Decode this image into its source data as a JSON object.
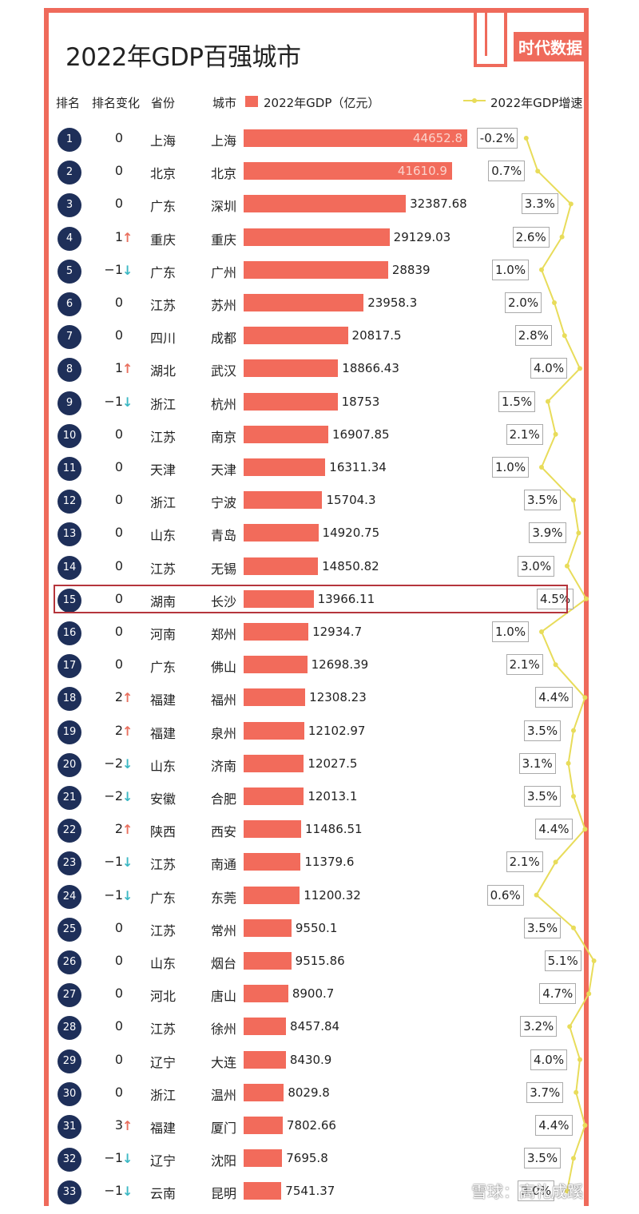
{
  "title": "2022年GDP百强城市",
  "brand": "时代数据",
  "headers": {
    "rank": "排名",
    "change": "排名变化",
    "province": "省份",
    "city": "城市",
    "gdp_legend": "2022年GDP（亿元）",
    "growth_legend": "2022年GDP增速"
  },
  "watermark": "雪球：高礼成蹊",
  "colors": {
    "bar": "#f26b5b",
    "rank_circle": "#1e2f59",
    "up": "#e9705f",
    "down": "#3cb8c4",
    "growth_line": "#e8dc5a",
    "highlight": "#b5353c"
  },
  "highlight_rank": "15",
  "chart_data": {
    "type": "bar",
    "title": "2022年GDP百强城市",
    "xlabel": "",
    "ylabel": "2022年GDP（亿元）",
    "rows": [
      {
        "rank": "1",
        "change": "0",
        "dir": "",
        "province": "上海",
        "city": "上海",
        "gdp": 44652.8,
        "gdp_label": "44652.8",
        "growth": "-0.2%",
        "growth_value": -0.2
      },
      {
        "rank": "2",
        "change": "0",
        "dir": "",
        "province": "北京",
        "city": "北京",
        "gdp": 41610.9,
        "gdp_label": "41610.9",
        "growth": "0.7%",
        "growth_value": 0.7
      },
      {
        "rank": "3",
        "change": "0",
        "dir": "",
        "province": "广东",
        "city": "深圳",
        "gdp": 32387.68,
        "gdp_label": "32387.68",
        "growth": "3.3%",
        "growth_value": 3.3
      },
      {
        "rank": "4",
        "change": "1",
        "dir": "up",
        "province": "重庆",
        "city": "重庆",
        "gdp": 29129.03,
        "gdp_label": "29129.03",
        "growth": "2.6%",
        "growth_value": 2.6
      },
      {
        "rank": "5",
        "change": "−1",
        "dir": "down",
        "province": "广东",
        "city": "广州",
        "gdp": 28839,
        "gdp_label": "28839",
        "growth": "1.0%",
        "growth_value": 1.0
      },
      {
        "rank": "6",
        "change": "0",
        "dir": "",
        "province": "江苏",
        "city": "苏州",
        "gdp": 23958.3,
        "gdp_label": "23958.3",
        "growth": "2.0%",
        "growth_value": 2.0
      },
      {
        "rank": "7",
        "change": "0",
        "dir": "",
        "province": "四川",
        "city": "成都",
        "gdp": 20817.5,
        "gdp_label": "20817.5",
        "growth": "2.8%",
        "growth_value": 2.8
      },
      {
        "rank": "8",
        "change": "1",
        "dir": "up",
        "province": "湖北",
        "city": "武汉",
        "gdp": 18866.43,
        "gdp_label": "18866.43",
        "growth": "4.0%",
        "growth_value": 4.0
      },
      {
        "rank": "9",
        "change": "−1",
        "dir": "down",
        "province": "浙江",
        "city": "杭州",
        "gdp": 18753,
        "gdp_label": "18753",
        "growth": "1.5%",
        "growth_value": 1.5
      },
      {
        "rank": "10",
        "change": "0",
        "dir": "",
        "province": "江苏",
        "city": "南京",
        "gdp": 16907.85,
        "gdp_label": "16907.85",
        "growth": "2.1%",
        "growth_value": 2.1
      },
      {
        "rank": "11",
        "change": "0",
        "dir": "",
        "province": "天津",
        "city": "天津",
        "gdp": 16311.34,
        "gdp_label": "16311.34",
        "growth": "1.0%",
        "growth_value": 1.0
      },
      {
        "rank": "12",
        "change": "0",
        "dir": "",
        "province": "浙江",
        "city": "宁波",
        "gdp": 15704.3,
        "gdp_label": "15704.3",
        "growth": "3.5%",
        "growth_value": 3.5
      },
      {
        "rank": "13",
        "change": "0",
        "dir": "",
        "province": "山东",
        "city": "青岛",
        "gdp": 14920.75,
        "gdp_label": "14920.75",
        "growth": "3.9%",
        "growth_value": 3.9
      },
      {
        "rank": "14",
        "change": "0",
        "dir": "",
        "province": "江苏",
        "city": "无锡",
        "gdp": 14850.82,
        "gdp_label": "14850.82",
        "growth": "3.0%",
        "growth_value": 3.0
      },
      {
        "rank": "15",
        "change": "0",
        "dir": "",
        "province": "湖南",
        "city": "长沙",
        "gdp": 13966.11,
        "gdp_label": "13966.11",
        "growth": "4.5%",
        "growth_value": 4.5
      },
      {
        "rank": "16",
        "change": "0",
        "dir": "",
        "province": "河南",
        "city": "郑州",
        "gdp": 12934.7,
        "gdp_label": "12934.7",
        "growth": "1.0%",
        "growth_value": 1.0
      },
      {
        "rank": "17",
        "change": "0",
        "dir": "",
        "province": "广东",
        "city": "佛山",
        "gdp": 12698.39,
        "gdp_label": "12698.39",
        "growth": "2.1%",
        "growth_value": 2.1
      },
      {
        "rank": "18",
        "change": "2",
        "dir": "up",
        "province": "福建",
        "city": "福州",
        "gdp": 12308.23,
        "gdp_label": "12308.23",
        "growth": "4.4%",
        "growth_value": 4.4
      },
      {
        "rank": "19",
        "change": "2",
        "dir": "up",
        "province": "福建",
        "city": "泉州",
        "gdp": 12102.97,
        "gdp_label": "12102.97",
        "growth": "3.5%",
        "growth_value": 3.5
      },
      {
        "rank": "20",
        "change": "−2",
        "dir": "down",
        "province": "山东",
        "city": "济南",
        "gdp": 12027.5,
        "gdp_label": "12027.5",
        "growth": "3.1%",
        "growth_value": 3.1
      },
      {
        "rank": "21",
        "change": "−2",
        "dir": "down",
        "province": "安徽",
        "city": "合肥",
        "gdp": 12013.1,
        "gdp_label": "12013.1",
        "growth": "3.5%",
        "growth_value": 3.5
      },
      {
        "rank": "22",
        "change": "2",
        "dir": "up",
        "province": "陕西",
        "city": "西安",
        "gdp": 11486.51,
        "gdp_label": "11486.51",
        "growth": "4.4%",
        "growth_value": 4.4
      },
      {
        "rank": "23",
        "change": "−1",
        "dir": "down",
        "province": "江苏",
        "city": "南通",
        "gdp": 11379.6,
        "gdp_label": "11379.6",
        "growth": "2.1%",
        "growth_value": 2.1
      },
      {
        "rank": "24",
        "change": "−1",
        "dir": "down",
        "province": "广东",
        "city": "东莞",
        "gdp": 11200.32,
        "gdp_label": "11200.32",
        "growth": "0.6%",
        "growth_value": 0.6
      },
      {
        "rank": "25",
        "change": "0",
        "dir": "",
        "province": "江苏",
        "city": "常州",
        "gdp": 9550.1,
        "gdp_label": "9550.1",
        "growth": "3.5%",
        "growth_value": 3.5
      },
      {
        "rank": "26",
        "change": "0",
        "dir": "",
        "province": "山东",
        "city": "烟台",
        "gdp": 9515.86,
        "gdp_label": "9515.86",
        "growth": "5.1%",
        "growth_value": 5.1
      },
      {
        "rank": "27",
        "change": "0",
        "dir": "",
        "province": "河北",
        "city": "唐山",
        "gdp": 8900.7,
        "gdp_label": "8900.7",
        "growth": "4.7%",
        "growth_value": 4.7
      },
      {
        "rank": "28",
        "change": "0",
        "dir": "",
        "province": "江苏",
        "city": "徐州",
        "gdp": 8457.84,
        "gdp_label": "8457.84",
        "growth": "3.2%",
        "growth_value": 3.2
      },
      {
        "rank": "29",
        "change": "0",
        "dir": "",
        "province": "辽宁",
        "city": "大连",
        "gdp": 8430.9,
        "gdp_label": "8430.9",
        "growth": "4.0%",
        "growth_value": 4.0
      },
      {
        "rank": "30",
        "change": "0",
        "dir": "",
        "province": "浙江",
        "city": "温州",
        "gdp": 8029.8,
        "gdp_label": "8029.8",
        "growth": "3.7%",
        "growth_value": 3.7
      },
      {
        "rank": "31",
        "change": "3",
        "dir": "up",
        "province": "福建",
        "city": "厦门",
        "gdp": 7802.66,
        "gdp_label": "7802.66",
        "growth": "4.4%",
        "growth_value": 4.4
      },
      {
        "rank": "32",
        "change": "−1",
        "dir": "down",
        "province": "辽宁",
        "city": "沈阳",
        "gdp": 7695.8,
        "gdp_label": "7695.8",
        "growth": "3.5%",
        "growth_value": 3.5
      },
      {
        "rank": "33",
        "change": "−1",
        "dir": "down",
        "province": "云南",
        "city": "昆明",
        "gdp": 7541.37,
        "gdp_label": "7541.37",
        "growth": "3.0%",
        "growth_value": 3.0
      }
    ]
  }
}
